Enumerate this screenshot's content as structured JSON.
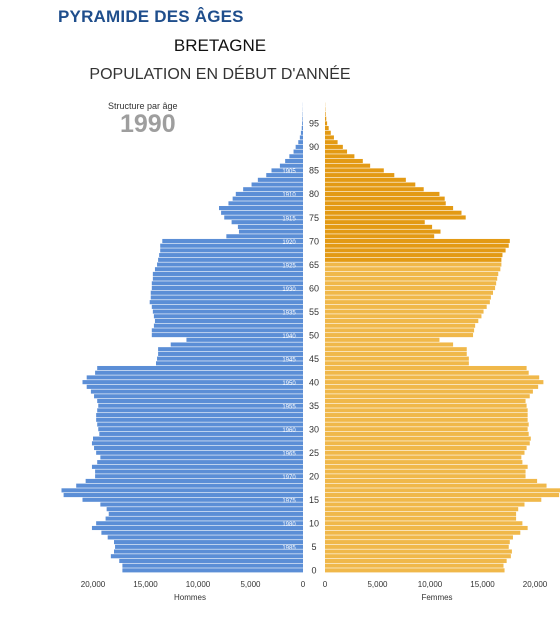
{
  "header": {
    "title": "PYRAMIDE DES ÂGES",
    "region": "BRETAGNE",
    "subtitle": "POPULATION EN DÉBUT D'ANNÉE",
    "structure_label": "Structure par âge",
    "year": "1990"
  },
  "colors": {
    "male": "#5b8ed6",
    "male_dark": "#3a6fc4",
    "female": "#f0b84a",
    "female_dark": "#e39a14"
  },
  "chart_data": {
    "type": "bar",
    "orientation": "horizontal-pyramid",
    "year": 1990,
    "ages": [
      0,
      1,
      2,
      3,
      4,
      5,
      6,
      7,
      8,
      9,
      10,
      11,
      12,
      13,
      14,
      15,
      16,
      17,
      18,
      19,
      20,
      21,
      22,
      23,
      24,
      25,
      26,
      27,
      28,
      29,
      30,
      31,
      32,
      33,
      34,
      35,
      36,
      37,
      38,
      39,
      40,
      41,
      42,
      43,
      44,
      45,
      46,
      47,
      48,
      49,
      50,
      51,
      52,
      53,
      54,
      55,
      56,
      57,
      58,
      59,
      60,
      61,
      62,
      63,
      64,
      65,
      66,
      67,
      68,
      69,
      70,
      71,
      72,
      73,
      74,
      75,
      76,
      77,
      78,
      79,
      80,
      81,
      82,
      83,
      84,
      85,
      86,
      87,
      88,
      89,
      90,
      91,
      92,
      93,
      94,
      95,
      96,
      97,
      98,
      99
    ],
    "series": [
      {
        "name": "Hommes",
        "values": [
          17200,
          17200,
          17500,
          18300,
          18000,
          17900,
          18000,
          18600,
          19200,
          20100,
          19700,
          18800,
          18500,
          18700,
          19300,
          21000,
          22800,
          23000,
          21600,
          20700,
          19800,
          19800,
          20100,
          19600,
          19300,
          19700,
          19900,
          20100,
          20000,
          19400,
          19500,
          19600,
          19700,
          19700,
          19600,
          19500,
          19600,
          19900,
          20200,
          20600,
          21000,
          20600,
          19800,
          19600,
          14000,
          13900,
          13800,
          13800,
          12600,
          11100,
          14400,
          14400,
          14200,
          14100,
          14200,
          14300,
          14400,
          14600,
          14500,
          14500,
          14400,
          14400,
          14300,
          14300,
          14100,
          13900,
          13800,
          13700,
          13600,
          13600,
          13400,
          7300,
          6100,
          6200,
          6800,
          7500,
          7800,
          8000,
          7100,
          6700,
          6400,
          5700,
          4900,
          4300,
          3500,
          3000,
          2200,
          1700,
          1300,
          900,
          700,
          450,
          300,
          200,
          120,
          80,
          50,
          30,
          15,
          10
        ]
      },
      {
        "name": "Femmes",
        "values": [
          17100,
          17000,
          17300,
          17700,
          17800,
          17500,
          17600,
          17900,
          18600,
          19300,
          18800,
          18200,
          18200,
          18400,
          19000,
          20600,
          22300,
          22600,
          21100,
          20200,
          19100,
          19100,
          19300,
          18800,
          18700,
          19000,
          19200,
          19500,
          19600,
          19400,
          19300,
          19400,
          19300,
          19300,
          19300,
          19200,
          19100,
          19500,
          19800,
          20300,
          20800,
          20400,
          19400,
          19200,
          13700,
          13700,
          13500,
          13500,
          12200,
          10900,
          14100,
          14200,
          14300,
          14600,
          14900,
          15100,
          15400,
          15700,
          15800,
          16000,
          16200,
          16300,
          16400,
          16500,
          16700,
          16800,
          16800,
          16900,
          17200,
          17500,
          17600,
          10400,
          11000,
          10200,
          9500,
          13400,
          13000,
          12200,
          11500,
          11400,
          10900,
          9400,
          8600,
          7700,
          6600,
          5600,
          4300,
          3600,
          2800,
          2100,
          1700,
          1200,
          850,
          550,
          350,
          200,
          120,
          60,
          30,
          15
        ]
      }
    ],
    "xlabel_left": "Hommes",
    "xlabel_right": "Femmes",
    "x_ticks_left": [
      "20,000",
      "15,000",
      "10,000",
      "5,000",
      "0"
    ],
    "x_ticks_right": [
      "0",
      "5,000",
      "10,000",
      "15,000",
      "20,000"
    ],
    "age_ticks": [
      "95",
      "90",
      "85",
      "80",
      "75",
      "70",
      "65",
      "60",
      "55",
      "50",
      "45",
      "40",
      "35",
      "30",
      "25",
      "20",
      "15",
      "10",
      "5",
      "0"
    ],
    "birth_year_ticks": [
      "1905",
      "1910",
      "1915",
      "1920",
      "1925",
      "1930",
      "1935",
      "1940",
      "1945",
      "1950",
      "1955",
      "1960",
      "1965",
      "1970",
      "1975",
      "1980",
      "1985"
    ],
    "xlim": [
      0,
      20000
    ],
    "ylim": [
      0,
      99
    ]
  }
}
